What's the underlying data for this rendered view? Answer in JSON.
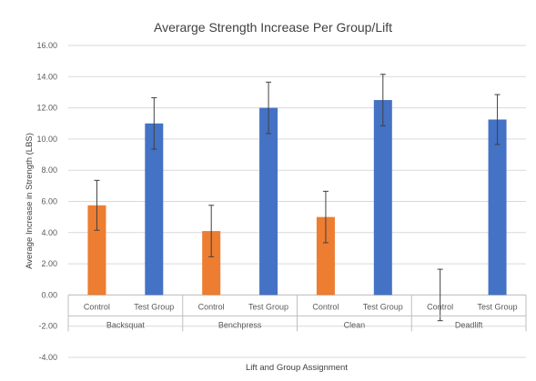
{
  "chart_data": {
    "type": "bar",
    "title": "Averarge Strength Increase Per Group/Lift",
    "xlabel": "Lift and Group Assignment",
    "ylabel": "Average Increase in Strength  (LBS)",
    "ylim": [
      -4,
      16
    ],
    "y_step": 2,
    "y_tick_labels": [
      "-4.00",
      "-2.00",
      "0.00",
      "2.00",
      "4.00",
      "6.00",
      "8.00",
      "10.00",
      "12.00",
      "14.00",
      "16.00"
    ],
    "grid": true,
    "legend": "none",
    "groups": [
      "Backsquat",
      "Benchpress",
      "Clean",
      "Deadlift"
    ],
    "categories": [
      "Control",
      "Test Group",
      "Control",
      "Test Group",
      "Control",
      "Test Group",
      "Control",
      "Test Group"
    ],
    "values": [
      5.75,
      11.0,
      4.1,
      12.0,
      5.0,
      12.5,
      0.0,
      11.25
    ],
    "error": [
      1.6,
      1.65,
      1.65,
      1.65,
      1.65,
      1.65,
      1.65,
      1.6
    ],
    "colors": {
      "Control": "#ed7d31",
      "Test Group": "#4472c4",
      "error_bar": "#404040",
      "grid": "#d9d9d9",
      "axis": "#bfbfbf"
    }
  }
}
